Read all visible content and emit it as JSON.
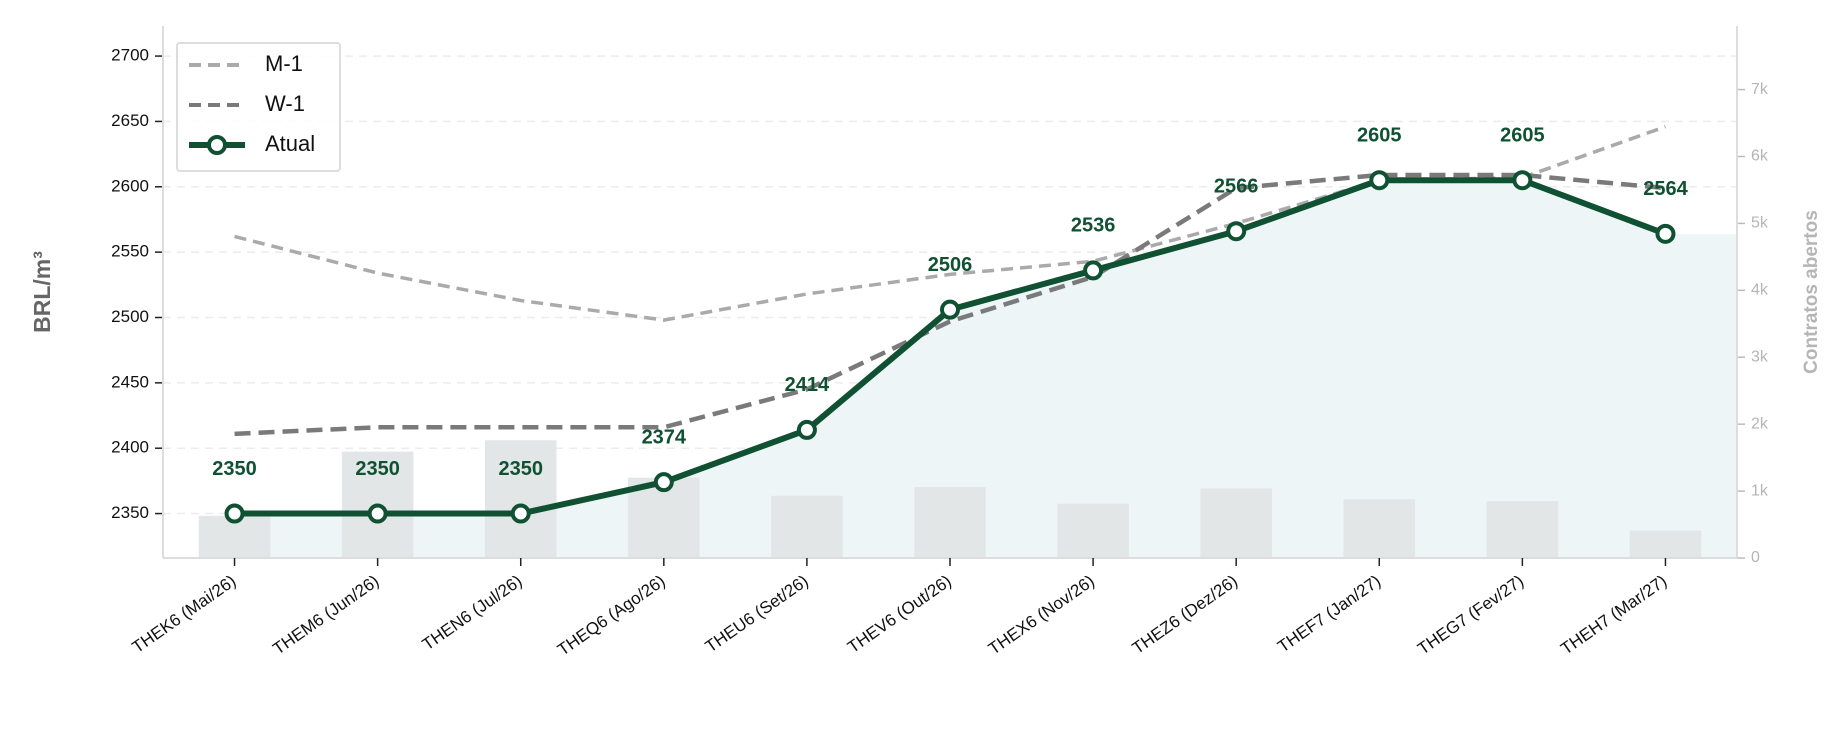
{
  "chart_data": {
    "type": "line",
    "ylabel": "BRL/m³",
    "y2label": "Contratos abertos",
    "categories": [
      "THEK6 (Mai/26)",
      "THEM6 (Jun/26)",
      "THEN6 (Jul/26)",
      "THEQ6 (Ago/26)",
      "THEU6 (Set/26)",
      "THEV6 (Out/26)",
      "THEX6 (Nov/26)",
      "THEZ6 (Dez/26)",
      "THEF7 (Jan/27)",
      "THEG7 (Fev/27)",
      "THEH7 (Mar/27)"
    ],
    "series": [
      {
        "name": "M-1",
        "color": "#aaaaaa",
        "linestyle": "dashed",
        "values": [
          2562,
          2534,
          2513,
          2498,
          2518,
          2533,
          2543,
          2572,
          2605,
          2607,
          2646
        ]
      },
      {
        "name": "W-1",
        "color": "#7a7a7a",
        "linestyle": "dashed",
        "values": [
          2411,
          2416,
          2416,
          2416,
          2445,
          2497,
          2531,
          2599,
          2609,
          2609,
          2599
        ]
      },
      {
        "name": "Atual",
        "color": "#0f5132",
        "linestyle": "solid",
        "marker": "o",
        "data_labels": true,
        "values": [
          2350,
          2350,
          2350,
          2374,
          2414,
          2506,
          2536,
          2566,
          2605,
          2605,
          2564
        ]
      }
    ],
    "area_color": "#eef5f7",
    "bars": {
      "axis": "y2",
      "color": "#e3e6e6",
      "values": [
        630,
        1590,
        1760,
        1200,
        930,
        1060,
        810,
        1040,
        880,
        850,
        410
      ]
    },
    "ylim": [
      2316,
      2723
    ],
    "yticks": [
      2350,
      2400,
      2450,
      2500,
      2550,
      2600,
      2650,
      2700
    ],
    "y2lim": [
      0,
      7950
    ],
    "y2ticks": [
      0,
      {
        "value": 1000,
        "label": "1k"
      },
      {
        "value": 2000,
        "label": "2k"
      },
      {
        "value": 3000,
        "label": "3k"
      },
      {
        "value": 4000,
        "label": "4k"
      },
      {
        "value": 5000,
        "label": "5k"
      },
      {
        "value": 6000,
        "label": "6k"
      },
      {
        "value": 7000,
        "label": "7k"
      }
    ],
    "grid": true,
    "legend": "upper left"
  }
}
